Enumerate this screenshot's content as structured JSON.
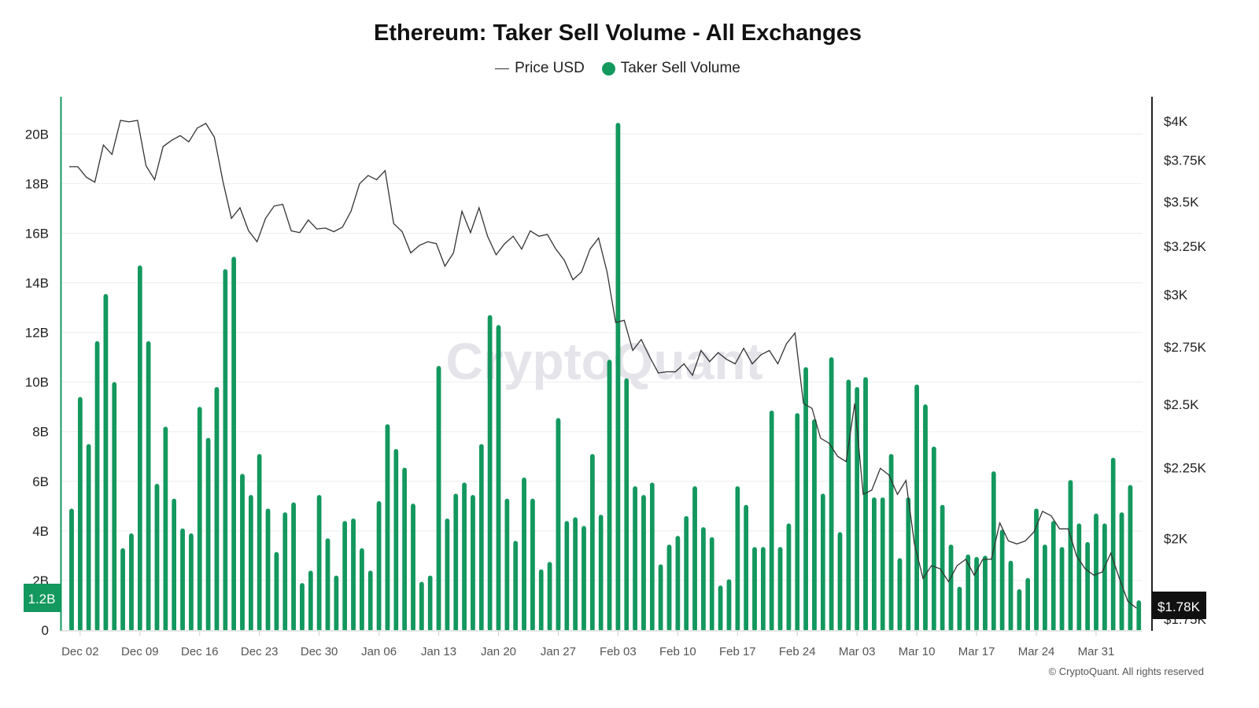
{
  "chart_data": {
    "type": "bar",
    "title": "Ethereum: Taker Sell Volume - All Exchanges",
    "watermark": "CryptoQuant",
    "credit": "© CryptoQuant. All rights reserved",
    "legend": [
      {
        "label": "Price USD",
        "type": "line",
        "color": "#333333"
      },
      {
        "label": "Taker Sell Volume",
        "type": "bar",
        "color": "#13985e"
      }
    ],
    "legend_position": "top-center",
    "start_date": "2024-12-01",
    "x_ticks": [
      "Dec 02",
      "Dec 09",
      "Dec 16",
      "Dec 23",
      "Dec 30",
      "Jan 06",
      "Jan 13",
      "Jan 20",
      "Jan 27",
      "Feb 03",
      "Feb 10",
      "Feb 17",
      "Feb 24",
      "Mar 03",
      "Mar 10",
      "Mar 17",
      "Mar 24",
      "Mar 31"
    ],
    "x_tick_first_index": 1,
    "x_tick_step_days": 7,
    "y_left": {
      "label": "Taker Sell Volume",
      "unit": "B",
      "range": [
        0,
        21.5
      ],
      "ticks": [
        "0",
        "2B",
        "4B",
        "6B",
        "8B",
        "10B",
        "12B",
        "14B",
        "16B",
        "18B",
        "20B"
      ],
      "tick_values": [
        0,
        2,
        4,
        6,
        8,
        10,
        12,
        14,
        16,
        18,
        20
      ]
    },
    "y_right": {
      "label": "Price USD",
      "scale": "log",
      "range": [
        1716,
        4160
      ],
      "ticks": [
        "$1.75K",
        "$2K",
        "$2.25K",
        "$2.5K",
        "$2.75K",
        "$3K",
        "$3.25K",
        "$3.5K",
        "$3.75K",
        "$4K"
      ],
      "tick_values": [
        1750,
        2000,
        2250,
        2500,
        2750,
        3000,
        3250,
        3500,
        3750,
        4000
      ]
    },
    "grid": true,
    "current_volume_label": "1.2B",
    "current_price_label": "$1.78K",
    "series": [
      {
        "name": "Taker Sell Volume",
        "unit": "B USD",
        "values": [
          4.9,
          9.4,
          7.5,
          11.65,
          13.55,
          10.0,
          3.3,
          3.9,
          14.7,
          11.65,
          5.9,
          8.2,
          5.3,
          4.1,
          3.9,
          9.0,
          7.75,
          9.8,
          14.55,
          15.05,
          6.3,
          5.45,
          7.1,
          4.9,
          3.15,
          4.75,
          5.15,
          1.9,
          2.4,
          5.45,
          3.7,
          2.2,
          4.4,
          4.5,
          3.3,
          2.4,
          5.2,
          8.3,
          7.3,
          6.55,
          5.1,
          1.95,
          2.2,
          10.65,
          4.5,
          5.5,
          5.95,
          5.45,
          7.5,
          12.7,
          12.3,
          5.3,
          3.6,
          6.15,
          5.3,
          2.45,
          2.75,
          8.55,
          4.4,
          4.55,
          4.2,
          7.1,
          4.65,
          10.9,
          20.45,
          10.15,
          5.8,
          5.45,
          5.95,
          2.65,
          3.45,
          3.8,
          4.6,
          5.8,
          4.15,
          3.75,
          1.8,
          2.05,
          5.8,
          5.05,
          3.35,
          3.35,
          8.85,
          3.35,
          4.3,
          8.75,
          10.6,
          8.5,
          5.5,
          11.0,
          3.95,
          10.1,
          9.8,
          10.2,
          5.35,
          5.35,
          7.1,
          2.9,
          5.35,
          9.9,
          9.1,
          7.4,
          5.05,
          3.45,
          1.75,
          3.05,
          2.95,
          3.0,
          6.4,
          4.05,
          2.8,
          1.65,
          2.1,
          4.9,
          3.45,
          4.4,
          3.35,
          6.05,
          4.3,
          3.55,
          4.7,
          4.3,
          6.95,
          4.75,
          5.85,
          1.2
        ]
      },
      {
        "name": "Price USD",
        "unit": "USD",
        "values": [
          3704,
          3704,
          3640,
          3610,
          3840,
          3780,
          4000,
          3990,
          4000,
          3710,
          3625,
          3830,
          3870,
          3900,
          3860,
          3950,
          3980,
          3890,
          3615,
          3400,
          3460,
          3330,
          3270,
          3400,
          3470,
          3480,
          3330,
          3320,
          3390,
          3340,
          3345,
          3325,
          3350,
          3440,
          3600,
          3650,
          3625,
          3680,
          3370,
          3325,
          3210,
          3250,
          3270,
          3260,
          3140,
          3210,
          3440,
          3320,
          3460,
          3300,
          3200,
          3260,
          3300,
          3230,
          3330,
          3300,
          3310,
          3230,
          3170,
          3070,
          3110,
          3230,
          3290,
          3110,
          2860,
          2870,
          2730,
          2780,
          2700,
          2630,
          2635,
          2635,
          2670,
          2620,
          2730,
          2680,
          2720,
          2690,
          2670,
          2740,
          2670,
          2710,
          2730,
          2670,
          2760,
          2810,
          2500,
          2480,
          2360,
          2340,
          2290,
          2270,
          2500,
          2150,
          2165,
          2245,
          2220,
          2150,
          2200,
          1980,
          1870,
          1910,
          1900,
          1860,
          1910,
          1930,
          1880,
          1930,
          1930,
          2050,
          1990,
          1980,
          1990,
          2020,
          2090,
          2075,
          2030,
          2030,
          1940,
          1900,
          1880,
          1890,
          1950,
          1870,
          1800,
          1780
        ]
      }
    ]
  }
}
